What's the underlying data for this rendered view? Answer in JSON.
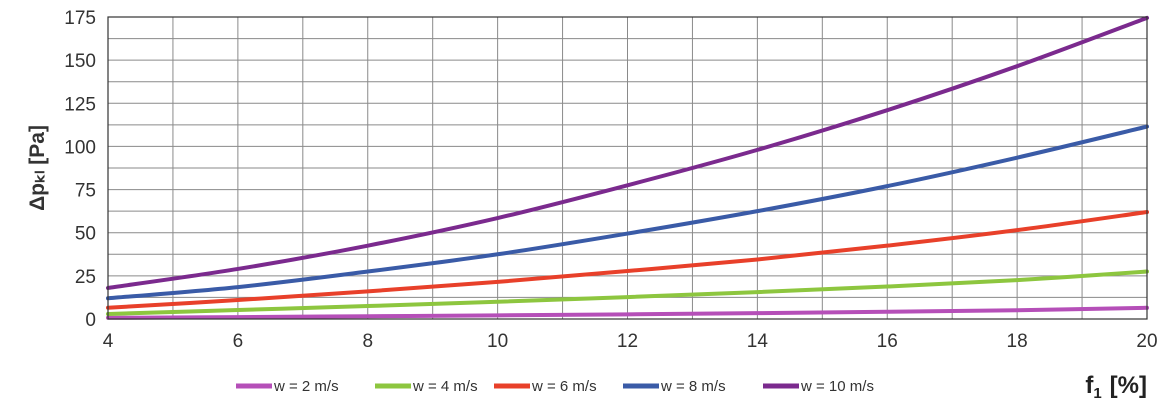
{
  "chart_data": {
    "type": "line",
    "xlabel": "f1 [%]",
    "xlabel_main": "f",
    "xlabel_sub": "1",
    "xlabel_unit": "[%]",
    "ylabel": "Δpₖₗ [Pa]",
    "xlim": [
      4,
      20
    ],
    "ylim": [
      0,
      175
    ],
    "x_ticks": [
      4,
      6,
      8,
      10,
      12,
      14,
      16,
      18,
      20
    ],
    "y_ticks": [
      0,
      25,
      50,
      75,
      100,
      125,
      150,
      175
    ],
    "grid": true,
    "legend_position": "bottom",
    "series": [
      {
        "name": "w = 2 m/s",
        "color": "#b54fb8",
        "x": [
          4,
          6,
          8,
          10,
          12,
          14,
          16,
          18,
          20
        ],
        "values": [
          0.7,
          1.1,
          1.6,
          2.1,
          2.7,
          3.4,
          4.2,
          5.1,
          6.5
        ]
      },
      {
        "name": "w = 4 m/s",
        "color": "#8dc63f",
        "x": [
          4,
          6,
          8,
          10,
          12,
          14,
          16,
          18,
          20
        ],
        "values": [
          2.9,
          5.2,
          7.5,
          10.0,
          12.7,
          15.6,
          18.8,
          22.5,
          27.5
        ]
      },
      {
        "name": "w = 6 m/s",
        "color": "#e8402a",
        "x": [
          4,
          6,
          8,
          10,
          12,
          14,
          16,
          18,
          20
        ],
        "values": [
          6.5,
          11.0,
          16.0,
          21.5,
          27.8,
          34.5,
          42.5,
          51.5,
          62.0
        ]
      },
      {
        "name": "w = 8 m/s",
        "color": "#3a5ba7",
        "x": [
          4,
          6,
          8,
          10,
          12,
          14,
          16,
          18,
          20
        ],
        "values": [
          12.0,
          18.5,
          27.5,
          37.5,
          49.5,
          62.5,
          77.0,
          93.5,
          111.5
        ]
      },
      {
        "name": "w = 10 m/s",
        "color": "#7b2a8e",
        "x": [
          4,
          6,
          8,
          10,
          12,
          14,
          16,
          18,
          20
        ],
        "values": [
          18.0,
          29.0,
          42.5,
          58.5,
          77.5,
          98.0,
          121.0,
          146.5,
          174.5
        ]
      }
    ]
  }
}
